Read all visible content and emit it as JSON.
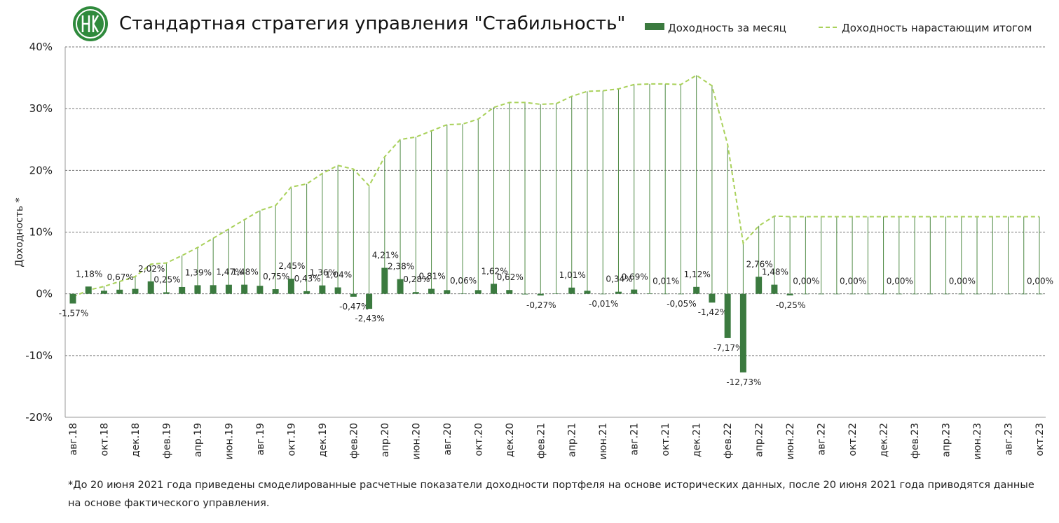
{
  "chart_data": {
    "type": "bar_line",
    "title": "Стандартная стратегия управления \"Стабильность\"",
    "y_label": "Доходность *",
    "footnote": "*До 20 июня 2021 года приведены смоделированные расчетные показатели доходности портфеля на основе исторических данных, после 20 июня 2021 года приводятся данные на основе фактического управления.",
    "categories": [
      "авг.18",
      null,
      "окт.18",
      null,
      "дек.18",
      null,
      "фев.19",
      null,
      "апр.19",
      null,
      "июн.19",
      null,
      "авг.19",
      null,
      "окт.19",
      null,
      "дек.19",
      null,
      "фев.20",
      null,
      "апр.20",
      null,
      "июн.20",
      null,
      "авг.20",
      null,
      "окт.20",
      null,
      "дек.20",
      null,
      "фев.21",
      null,
      "апр.21",
      null,
      "июн.21",
      null,
      "авг.21",
      null,
      "окт.21",
      null,
      "дек.21",
      null,
      "фев.22",
      null,
      "апр.22",
      null,
      "июн.22",
      null,
      "авг.22",
      null,
      "окт.22",
      null,
      "дек.22",
      null,
      "фев.23",
      null,
      "апр.23",
      null,
      "июн.23",
      null,
      "авг.23",
      null,
      "окт.23"
    ],
    "series": [
      {
        "name": "Доходность за месяц",
        "type": "bar",
        "color": "#3b7a3f",
        "values": [
          -1.57,
          1.18,
          0.5,
          0.67,
          0.8,
          2.02,
          0.25,
          1.1,
          1.39,
          1.4,
          1.47,
          1.48,
          1.3,
          0.75,
          2.45,
          0.43,
          1.36,
          1.04,
          -0.47,
          -2.43,
          4.21,
          2.38,
          0.28,
          0.81,
          0.6,
          0.06,
          0.6,
          1.62,
          0.62,
          -0.1,
          -0.27,
          0.05,
          1.01,
          0.5,
          -0.01,
          0.34,
          0.69,
          0.05,
          0.01,
          -0.05,
          1.12,
          -1.42,
          -7.17,
          -12.73,
          2.76,
          1.48,
          -0.25,
          0,
          0,
          0,
          0,
          0,
          0,
          0,
          0,
          0,
          0,
          0,
          0,
          0,
          0,
          0,
          0
        ],
        "value_labels": [
          "-1,57%",
          "1,18%",
          null,
          "0,67%",
          null,
          "2,02%",
          "0,25%",
          null,
          "1,39%",
          null,
          "1,47%",
          "1,48%",
          null,
          "0,75%",
          "2,45%",
          "0,43%",
          "1,36%",
          "1,04%",
          "-0,47%",
          "-2,43%",
          "4,21%",
          "2,38%",
          "0,28%",
          "0,81%",
          null,
          "0,06%",
          null,
          "1,62%",
          "0,62%",
          null,
          "-0,27%",
          null,
          "1,01%",
          null,
          "-0,01%",
          "0,34%",
          "0,69%",
          null,
          "0,01%",
          "-0,05%",
          "1,12%",
          "-1,42%",
          "-7,17%",
          "-12,73%",
          "2,76%",
          "1,48%",
          "-0,25%",
          "0,00%",
          null,
          null,
          "0,00%",
          null,
          null,
          "0,00%",
          null,
          null,
          null,
          "0,00%",
          null,
          null,
          null,
          null,
          "0,00%"
        ]
      },
      {
        "name": "Доходность нарастающим итогом",
        "type": "line",
        "color": "#a9d15a",
        "dashed": true,
        "drop_lines": true,
        "drop_color": "#4f8a45",
        "values": [
          -0.5,
          0.6,
          1.2,
          2,
          2.8,
          4.8,
          5,
          6.2,
          7.5,
          9,
          10.5,
          12,
          13.5,
          14.3,
          17.3,
          17.8,
          19.5,
          20.8,
          20.2,
          17.5,
          22.2,
          25,
          25.4,
          26.4,
          27.4,
          27.5,
          28.3,
          30.2,
          31,
          31,
          30.7,
          30.8,
          32,
          32.8,
          32.9,
          33.2,
          33.9,
          34,
          34,
          33.9,
          35.4,
          33.7,
          24.2,
          8.2,
          11,
          12.6,
          12.5,
          12.5,
          12.5,
          12.5,
          12.5,
          12.5,
          12.5,
          12.5,
          12.5,
          12.5,
          12.5,
          12.5,
          12.5,
          12.5,
          12.5,
          12.5,
          12.5
        ]
      }
    ],
    "ylim": [
      -20,
      40
    ],
    "yticks": [
      {
        "value": -20,
        "label": "-20%"
      },
      {
        "value": -10,
        "label": "-10%"
      },
      {
        "value": 0,
        "label": "0%"
      },
      {
        "value": 10,
        "label": "10%"
      },
      {
        "value": 20,
        "label": "20%"
      },
      {
        "value": 30,
        "label": "30%"
      },
      {
        "value": 40,
        "label": "40%"
      }
    ],
    "grid": true
  }
}
